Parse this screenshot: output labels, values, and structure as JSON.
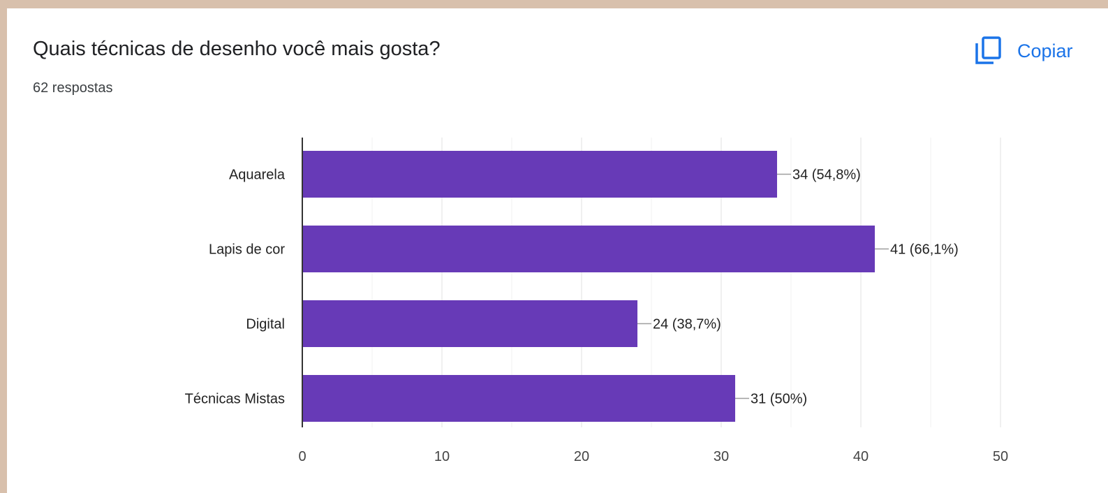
{
  "question": {
    "title": "Quais técnicas de desenho você mais gosta?",
    "responses_label": "62 respostas"
  },
  "copy_button": {
    "label": "Copiar",
    "icon": "copy-icon"
  },
  "colors": {
    "bar": "#673ab7",
    "accent": "#1a73e8",
    "background": "#d8c0ac"
  },
  "chart_data": {
    "type": "bar",
    "orientation": "horizontal",
    "categories": [
      "Aquarela",
      "Lapis de cor",
      "Digital",
      "Técnicas Mistas"
    ],
    "values": [
      34,
      41,
      24,
      31
    ],
    "data_labels": [
      "34 (54,8%)",
      "41 (66,1%)",
      "24 (38,7%)",
      "31 (50%)"
    ],
    "xlim": [
      0,
      50
    ],
    "xticks": [
      "0",
      "10",
      "20",
      "30",
      "40",
      "50"
    ],
    "grid": true
  }
}
